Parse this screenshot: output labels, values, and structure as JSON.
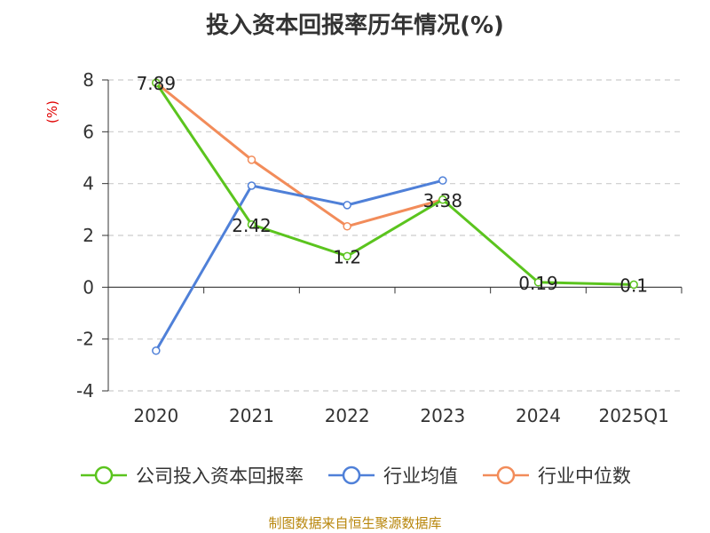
{
  "chart_data": {
    "type": "line",
    "title": "投入资本回报率历年情况(%)",
    "ylabel": "(%)",
    "categories": [
      "2020",
      "2021",
      "2022",
      "2023",
      "2024",
      "2025Q1"
    ],
    "ylim": [
      -4,
      8
    ],
    "yticks": [
      8,
      6,
      4,
      2,
      0,
      -2,
      -4
    ],
    "grid": "horizontal dashed",
    "legend_position": "bottom",
    "series": [
      {
        "name": "公司投入资本回报率",
        "color": "#5bc41e",
        "values": [
          7.89,
          2.42,
          1.2,
          3.38,
          0.19,
          0.1
        ],
        "labels": [
          "7.89",
          "2.42",
          "1.2",
          "3.38",
          "0.19",
          "0.1"
        ]
      },
      {
        "name": "行业均值",
        "color": "#4f80d8",
        "values": [
          -2.45,
          3.92,
          3.17,
          4.12,
          null,
          null
        ]
      },
      {
        "name": "行业中位数",
        "color": "#f28c5a",
        "values": [
          7.89,
          4.92,
          2.35,
          3.38,
          null,
          null
        ]
      }
    ],
    "source": "制图数据来自恒生聚源数据库"
  }
}
